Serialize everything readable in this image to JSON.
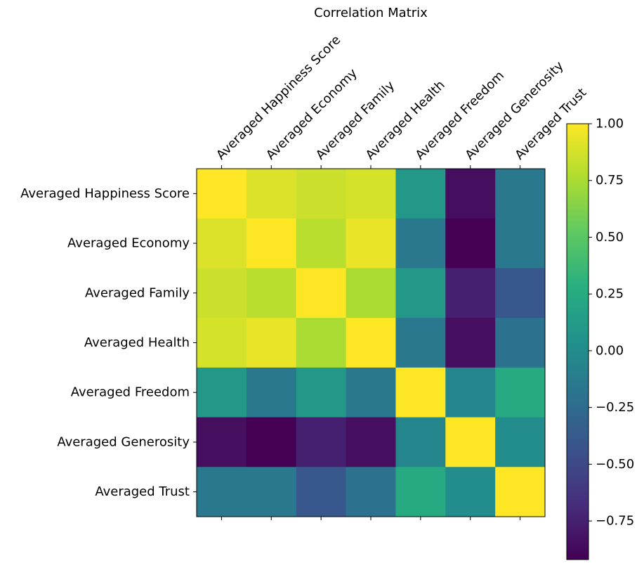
{
  "chart_data": {
    "type": "heatmap",
    "title": "Correlation Matrix",
    "xlabel": "",
    "ylabel": "",
    "x_categories": [
      "Averaged Happiness Score",
      "Averaged Economy",
      "Averaged Family",
      "Averaged Health",
      "Averaged Freedom",
      "Averaged Generosity",
      "Averaged Trust"
    ],
    "y_categories": [
      "Averaged Happiness Score",
      "Averaged Economy",
      "Averaged Family",
      "Averaged Health",
      "Averaged Freedom",
      "Averaged Generosity",
      "Averaged Trust"
    ],
    "values": [
      [
        1.0,
        0.9,
        0.85,
        0.88,
        0.1,
        -0.85,
        -0.15
      ],
      [
        0.9,
        1.0,
        0.8,
        0.94,
        -0.15,
        -0.92,
        -0.15
      ],
      [
        0.85,
        0.8,
        1.0,
        0.75,
        0.1,
        -0.75,
        -0.4
      ],
      [
        0.88,
        0.94,
        0.75,
        1.0,
        -0.15,
        -0.85,
        -0.2
      ],
      [
        0.1,
        -0.15,
        0.1,
        -0.15,
        1.0,
        -0.05,
        0.25
      ],
      [
        -0.85,
        -0.92,
        -0.75,
        -0.85,
        -0.05,
        1.0,
        0.0
      ],
      [
        -0.15,
        -0.15,
        -0.4,
        -0.2,
        0.25,
        0.0,
        1.0
      ]
    ],
    "colormap": "viridis",
    "color_range": [
      -0.92,
      1.0
    ],
    "colorbar_ticks": [
      1.0,
      0.75,
      0.5,
      0.25,
      0.0,
      -0.25,
      -0.5,
      -0.75
    ],
    "colorbar_tick_labels": [
      "1.00",
      "0.75",
      "0.50",
      "0.25",
      "0.00",
      "−0.25",
      "−0.50",
      "−0.75"
    ],
    "colorbar_position": "right",
    "grid": false
  }
}
